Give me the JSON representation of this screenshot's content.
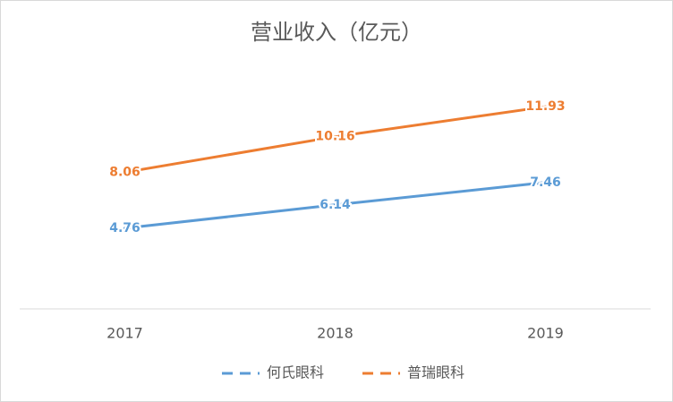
{
  "chart_data": {
    "type": "line",
    "title": "营业收入（亿元）",
    "categories": [
      "2017",
      "2018",
      "2019"
    ],
    "series": [
      {
        "name": "何氏眼科",
        "color": "#5b9bd5",
        "values": [
          4.76,
          6.14,
          7.46
        ]
      },
      {
        "name": "普瑞眼科",
        "color": "#ed7d31",
        "values": [
          8.06,
          10.16,
          11.93
        ]
      }
    ],
    "ylim": [
      0,
      14
    ],
    "legend": "bottom"
  }
}
